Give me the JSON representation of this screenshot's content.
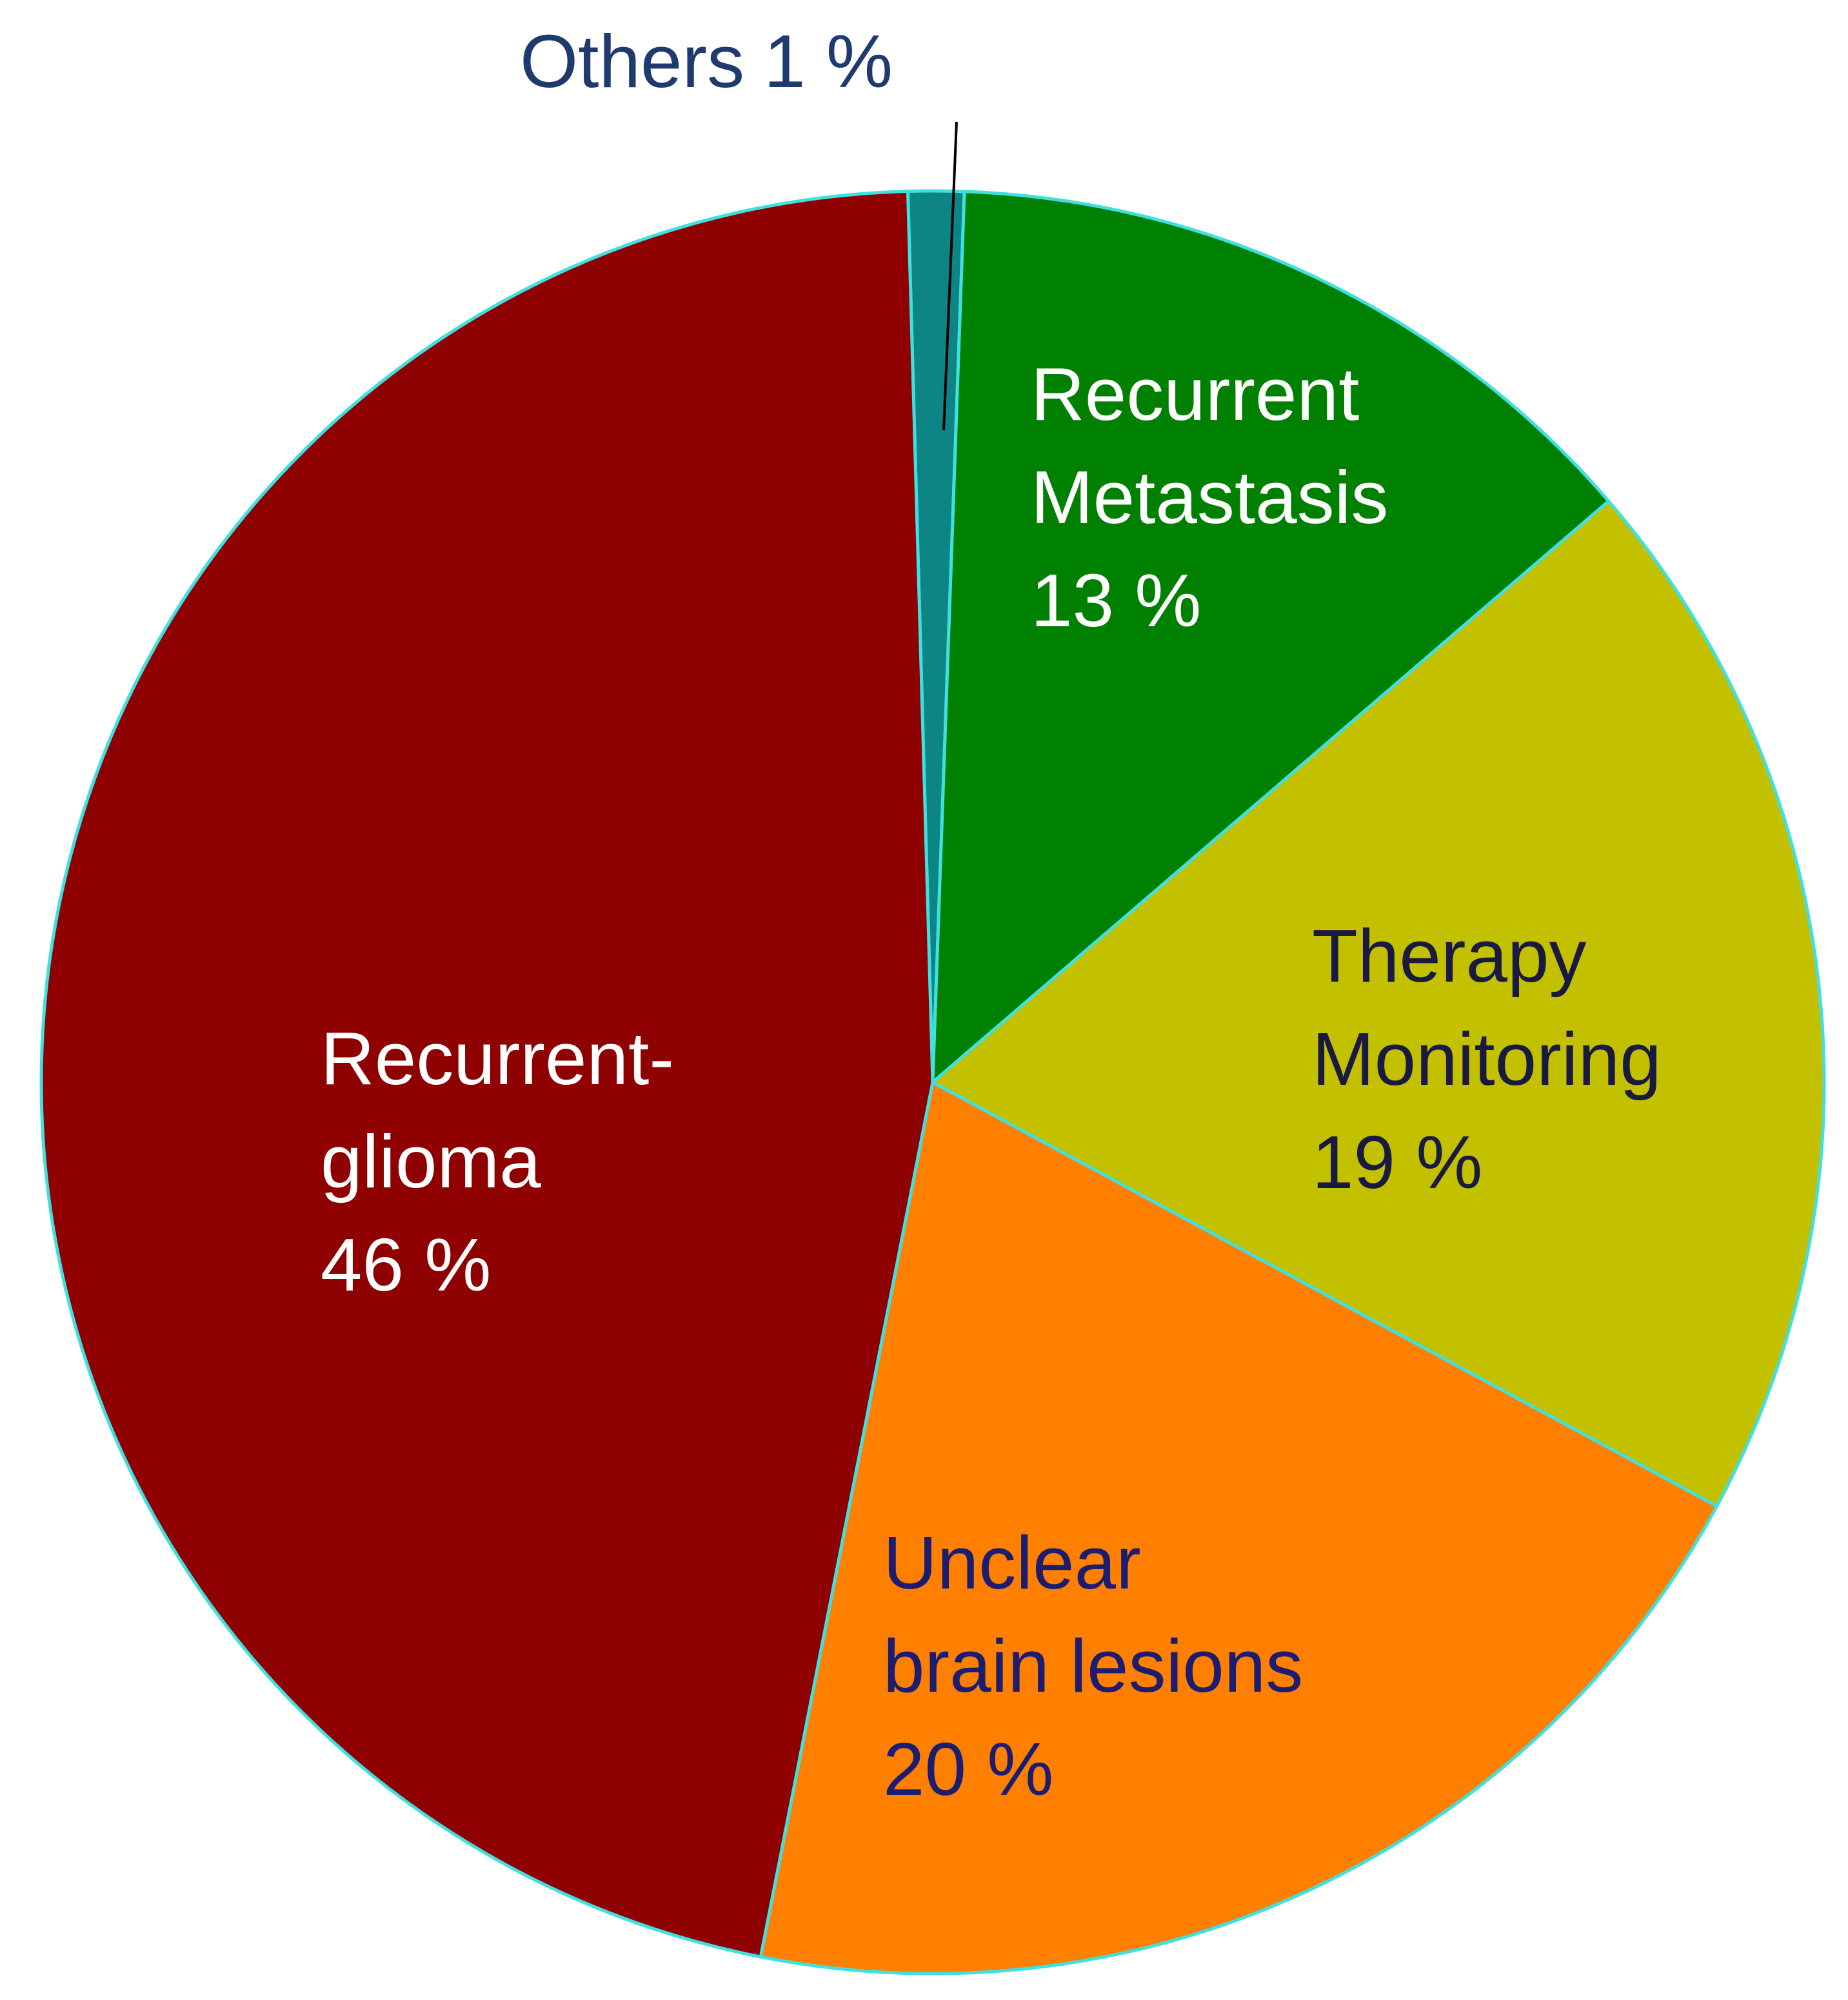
{
  "chart_data": {
    "type": "pie",
    "categories": [
      "Others",
      "Recurrent Metastasis",
      "Therapy Monitoring",
      "Unclear brain lesions",
      "Recurrent-glioma"
    ],
    "values": [
      1,
      13,
      19,
      20,
      46
    ],
    "value_labels": [
      "1 %",
      "13 %",
      "19 %",
      "20 %",
      "46 %"
    ],
    "colors": [
      "#0e8585",
      "#008000",
      "#c3c000",
      "#ff8000",
      "#8f0000"
    ]
  }
}
